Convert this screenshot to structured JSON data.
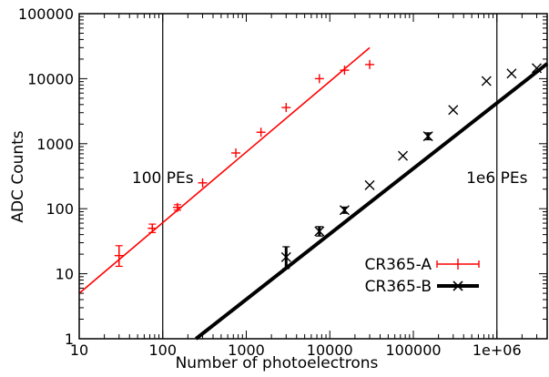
{
  "chart_data": {
    "type": "scatter",
    "x_scale": "log",
    "y_scale": "log",
    "xlim": [
      10,
      4000000
    ],
    "ylim": [
      1,
      100000
    ],
    "xlabel": "Number of photoelectrons",
    "ylabel": "ADC Counts",
    "x_ticks": [
      {
        "value": 10,
        "label": "10"
      },
      {
        "value": 100,
        "label": "100"
      },
      {
        "value": 1000,
        "label": "1000"
      },
      {
        "value": 10000,
        "label": "10000"
      },
      {
        "value": 100000,
        "label": "100000"
      },
      {
        "value": 1000000,
        "label": "1e+06"
      }
    ],
    "y_ticks": [
      {
        "value": 1,
        "label": "1"
      },
      {
        "value": 10,
        "label": "10"
      },
      {
        "value": 100,
        "label": "100"
      },
      {
        "value": 1000,
        "label": "1000"
      },
      {
        "value": 10000,
        "label": "10000"
      },
      {
        "value": 100000,
        "label": "100000"
      }
    ],
    "grid": false,
    "legend_position": "bottom-right",
    "vertical_lines": [
      {
        "x": 100,
        "label": "100 PEs",
        "label_y": 300
      },
      {
        "x": 1000000,
        "label": "1e6 PEs",
        "label_y": 300
      }
    ],
    "series": [
      {
        "name": "CR365-A",
        "color": "#ff0000",
        "marker": "plus",
        "points": [
          {
            "x": 30,
            "y": 19,
            "y_low": 13,
            "y_high": 27
          },
          {
            "x": 75,
            "y": 50,
            "y_low": 43,
            "y_high": 58
          },
          {
            "x": 150,
            "y": 105,
            "y_low": 95,
            "y_high": 115
          },
          {
            "x": 300,
            "y": 250
          },
          {
            "x": 750,
            "y": 720
          },
          {
            "x": 1500,
            "y": 1500
          },
          {
            "x": 3000,
            "y": 3600
          },
          {
            "x": 7500,
            "y": 10000
          },
          {
            "x": 15000,
            "y": 13500
          },
          {
            "x": 30000,
            "y": 16500
          }
        ],
        "fit": {
          "x": [
            10,
            30000
          ],
          "y": [
            5,
            30000
          ]
        }
      },
      {
        "name": "CR365-B",
        "color": "#000000",
        "marker": "cross",
        "points": [
          {
            "x": 3000,
            "y": 18,
            "y_low": 12,
            "y_high": 26
          },
          {
            "x": 7500,
            "y": 45,
            "y_low": 38,
            "y_high": 53
          },
          {
            "x": 15000,
            "y": 95,
            "y_low": 85,
            "y_high": 106
          },
          {
            "x": 30000,
            "y": 230
          },
          {
            "x": 75000,
            "y": 650
          },
          {
            "x": 150000,
            "y": 1300,
            "y_low": 1150,
            "y_high": 1470
          },
          {
            "x": 300000,
            "y": 3300
          },
          {
            "x": 750000,
            "y": 9200
          },
          {
            "x": 1500000,
            "y": 12000
          },
          {
            "x": 3000000,
            "y": 14500
          }
        ],
        "fit": {
          "x": [
            250,
            4000000
          ],
          "y": [
            1,
            17000
          ]
        }
      }
    ]
  }
}
